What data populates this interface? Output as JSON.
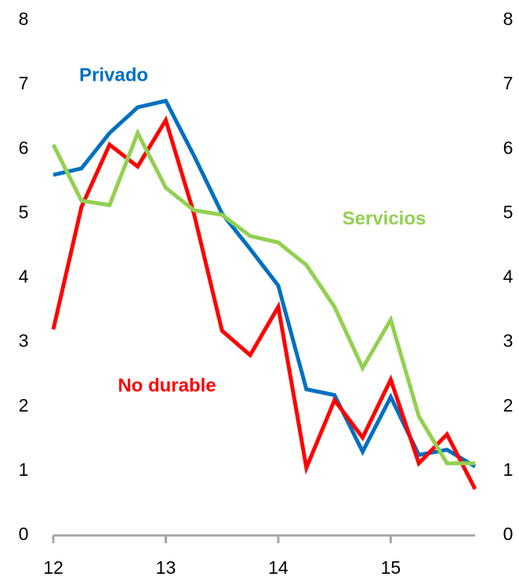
{
  "chart_data": {
    "type": "line",
    "x": [
      12,
      12.25,
      12.5,
      12.75,
      13,
      13.25,
      13.5,
      13.75,
      14,
      14.25,
      14.5,
      14.75,
      15,
      15.25,
      15.5,
      15.75
    ],
    "series": [
      {
        "name": "Privado",
        "color": "#0070c0",
        "values": [
          5.6,
          5.7,
          6.25,
          6.65,
          6.75,
          5.9,
          5.0,
          4.45,
          3.88,
          2.27,
          2.18,
          1.3,
          2.15,
          1.25,
          1.33,
          1.07
        ]
      },
      {
        "name": "No durable",
        "color": "#ff0000",
        "values": [
          3.2,
          5.1,
          6.07,
          5.73,
          6.45,
          5.0,
          3.18,
          2.8,
          3.55,
          1.05,
          2.1,
          1.52,
          2.42,
          1.12,
          1.57,
          0.72
        ]
      },
      {
        "name": "Servicios",
        "color": "#92d050",
        "values": [
          6.07,
          5.2,
          5.13,
          6.25,
          5.4,
          5.05,
          4.98,
          4.65,
          4.55,
          4.2,
          3.55,
          2.6,
          3.35,
          1.85,
          1.12,
          1.12
        ]
      }
    ],
    "xlim": [
      12,
      15.75
    ],
    "xticks": [
      12,
      13,
      14,
      15
    ],
    "ylim": [
      0,
      8
    ],
    "yticks": [
      0,
      1,
      2,
      3,
      4,
      5,
      6,
      7,
      8
    ],
    "y2lim": [
      0,
      8
    ],
    "y2ticks": [
      0,
      1,
      2,
      3,
      4,
      5,
      6,
      7,
      8
    ],
    "grid": false
  }
}
